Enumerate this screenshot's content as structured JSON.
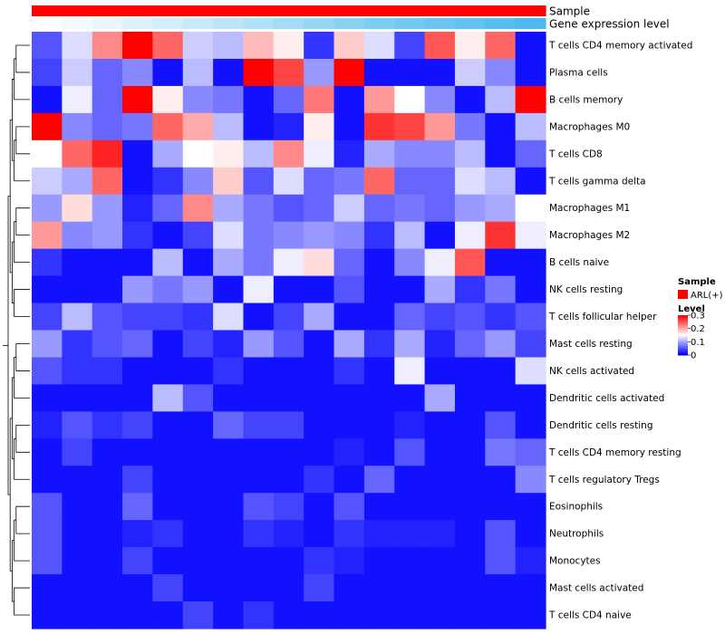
{
  "chart_data": {
    "type": "heatmap",
    "annotation_tracks": [
      {
        "label": "Sample",
        "color": "#ff0000"
      },
      {
        "label": "Gene expression level",
        "gradient": [
          "#ffffff",
          "#c6e8f8",
          "#7fd0f2",
          "#4fb8ee"
        ]
      }
    ],
    "rows": [
      "T cells CD4 memory activated",
      "Plasma cells",
      "B cells memory",
      "Macrophages M0",
      "T cells CD8",
      "T cells gamma delta",
      "Macrophages M1",
      "Macrophages M2",
      "B cells naive",
      "NK cells resting",
      "T cells follicular helper",
      "Mast cells resting",
      "NK cells activated",
      "Dendritic cells activated",
      "Dendritic cells resting",
      "T cells CD4 memory resting",
      "T cells regulatory  Tregs",
      "Eosinophils",
      "Neutrophils",
      "Monocytes",
      "Mast cells activated",
      "T cells CD4 naive"
    ],
    "columns": 17,
    "values": [
      [
        0.05,
        0.13,
        0.22,
        0.3,
        0.24,
        0.12,
        0.11,
        0.19,
        0.16,
        0.03,
        0.18,
        0.13,
        0.04,
        0.25,
        0.16,
        0.24,
        0.01
      ],
      [
        0.04,
        0.12,
        0.06,
        0.08,
        0.01,
        0.11,
        0.01,
        0.3,
        0.26,
        0.09,
        0.3,
        0.01,
        0.01,
        0.01,
        0.12,
        0.08,
        0.01
      ],
      [
        0.01,
        0.14,
        0.06,
        0.3,
        0.16,
        0.08,
        0.07,
        0.01,
        0.06,
        0.23,
        0.01,
        0.21,
        0.15,
        0.08,
        0.01,
        0.11,
        0.3
      ],
      [
        0.3,
        0.08,
        0.06,
        0.07,
        0.24,
        0.2,
        0.11,
        0.01,
        0.02,
        0.16,
        0.01,
        0.27,
        0.26,
        0.21,
        0.07,
        0.01,
        0.11
      ],
      [
        0.15,
        0.24,
        0.28,
        0.01,
        0.1,
        0.15,
        0.16,
        0.11,
        0.22,
        0.14,
        0.02,
        0.1,
        0.08,
        0.08,
        0.11,
        0.01,
        0.06
      ],
      [
        0.12,
        0.1,
        0.24,
        0.01,
        0.03,
        0.08,
        0.18,
        0.05,
        0.13,
        0.06,
        0.07,
        0.24,
        0.06,
        0.06,
        0.13,
        0.11,
        0.01
      ],
      [
        0.09,
        0.17,
        0.09,
        0.02,
        0.06,
        0.22,
        0.1,
        0.07,
        0.05,
        0.06,
        0.12,
        0.06,
        0.07,
        0.06,
        0.09,
        0.1,
        0.15
      ],
      [
        0.21,
        0.08,
        0.09,
        0.03,
        0.01,
        0.04,
        0.13,
        0.07,
        0.08,
        0.09,
        0.08,
        0.03,
        0.11,
        0.01,
        0.14,
        0.27,
        0.14
      ],
      [
        0.03,
        0.01,
        0.01,
        0.01,
        0.11,
        0.01,
        0.1,
        0.07,
        0.14,
        0.17,
        0.06,
        0.01,
        0.08,
        0.14,
        0.25,
        0.01,
        0.01
      ],
      [
        0.01,
        0.01,
        0.01,
        0.09,
        0.07,
        0.09,
        0.01,
        0.14,
        0.01,
        0.01,
        0.05,
        0.01,
        0.01,
        0.1,
        0.03,
        0.07,
        0.01
      ],
      [
        0.04,
        0.11,
        0.05,
        0.04,
        0.04,
        0.03,
        0.13,
        0.01,
        0.04,
        0.1,
        0.01,
        0.01,
        0.06,
        0.04,
        0.05,
        0.03,
        0.05
      ],
      [
        0.09,
        0.03,
        0.05,
        0.06,
        0.01,
        0.04,
        0.02,
        0.09,
        0.05,
        0.01,
        0.1,
        0.03,
        0.1,
        0.02,
        0.06,
        0.09,
        0.04
      ],
      [
        0.05,
        0.03,
        0.03,
        0.01,
        0.01,
        0.01,
        0.03,
        0.01,
        0.01,
        0.01,
        0.03,
        0.01,
        0.14,
        0.01,
        0.01,
        0.01,
        0.13
      ],
      [
        0.01,
        0.01,
        0.01,
        0.01,
        0.11,
        0.05,
        0.01,
        0.01,
        0.01,
        0.01,
        0.01,
        0.01,
        0.01,
        0.1,
        0.01,
        0.01,
        0.01
      ],
      [
        0.02,
        0.05,
        0.03,
        0.04,
        0.01,
        0.01,
        0.06,
        0.04,
        0.04,
        0.01,
        0.01,
        0.01,
        0.02,
        0.01,
        0.01,
        0.05,
        0.01
      ],
      [
        0.01,
        0.04,
        0.01,
        0.01,
        0.01,
        0.01,
        0.01,
        0.01,
        0.01,
        0.01,
        0.02,
        0.01,
        0.05,
        0.01,
        0.01,
        0.07,
        0.06
      ],
      [
        0.01,
        0.01,
        0.01,
        0.04,
        0.01,
        0.01,
        0.01,
        0.01,
        0.01,
        0.03,
        0.01,
        0.06,
        0.01,
        0.01,
        0.01,
        0.01,
        0.08
      ],
      [
        0.05,
        0.01,
        0.01,
        0.06,
        0.01,
        0.01,
        0.01,
        0.05,
        0.04,
        0.01,
        0.05,
        0.01,
        0.01,
        0.01,
        0.01,
        0.01,
        0.01
      ],
      [
        0.05,
        0.01,
        0.01,
        0.02,
        0.03,
        0.01,
        0.01,
        0.03,
        0.02,
        0.01,
        0.03,
        0.02,
        0.02,
        0.02,
        0.01,
        0.05,
        0.01
      ],
      [
        0.05,
        0.01,
        0.01,
        0.04,
        0.01,
        0.01,
        0.01,
        0.01,
        0.01,
        0.03,
        0.02,
        0.01,
        0.01,
        0.01,
        0.01,
        0.05,
        0.02
      ],
      [
        0.01,
        0.01,
        0.01,
        0.01,
        0.04,
        0.01,
        0.01,
        0.01,
        0.01,
        0.04,
        0.01,
        0.01,
        0.01,
        0.01,
        0.01,
        0.01,
        0.01
      ],
      [
        0.01,
        0.01,
        0.01,
        0.01,
        0.01,
        0.04,
        0.01,
        0.03,
        0.01,
        0.01,
        0.01,
        0.01,
        0.01,
        0.01,
        0.01,
        0.01,
        0.01
      ]
    ],
    "color_scale": {
      "low": "#0000ff",
      "mid": "#ffffff",
      "high": "#ff0000",
      "min": 0,
      "mid_value": 0.15,
      "max": 0.3
    },
    "legend": {
      "sample_title": "Sample",
      "sample_entry": "ARL(+)",
      "level_title": "Level",
      "level_ticks": [
        {
          "value": 0.3,
          "label": "0.3"
        },
        {
          "value": 0.2,
          "label": "0.2"
        },
        {
          "value": 0.1,
          "label": "0.1"
        },
        {
          "value": 0.0,
          "label": "0"
        }
      ],
      "placement": "right"
    },
    "row_dendrogram": true
  }
}
